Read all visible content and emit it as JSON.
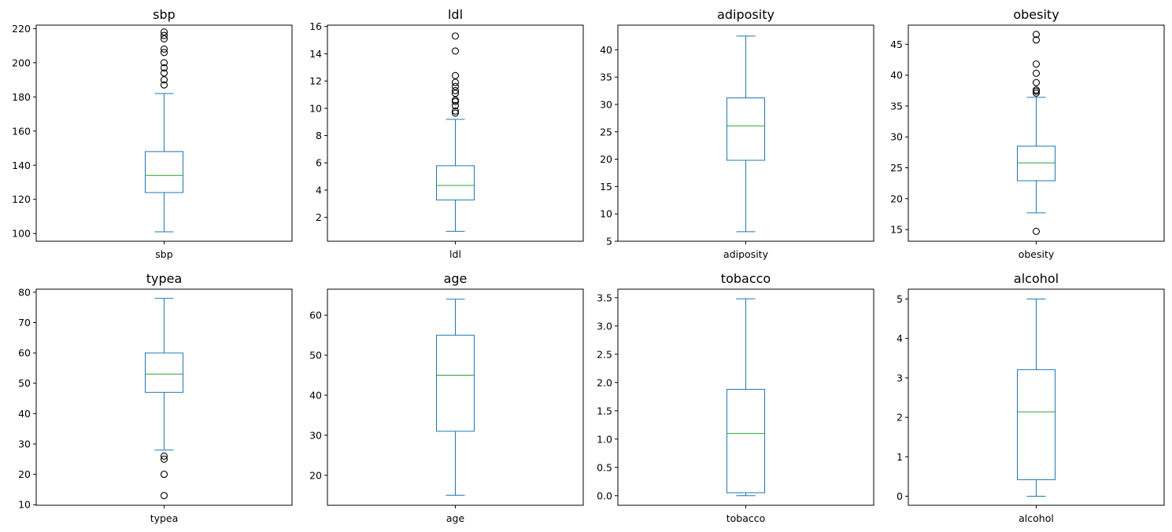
{
  "figure": {
    "background": "#ffffff"
  },
  "colors": {
    "box": "#1f77b4",
    "median": "#2ca02c",
    "flier": "#000000",
    "axes": "#000000"
  },
  "chart_data": [
    {
      "type": "box",
      "title": "sbp",
      "xlabel": "sbp",
      "ylim": [
        95.5,
        222
      ],
      "yticks": [
        100,
        120,
        140,
        160,
        180,
        200,
        220
      ],
      "ytick_labels": [
        "100",
        "120",
        "140",
        "160",
        "180",
        "200",
        "220"
      ],
      "stats": {
        "whislo": 101,
        "q1": 124,
        "median": 134,
        "q3": 148,
        "whishi": 182,
        "fliers": [
          187,
          190,
          194,
          197,
          200,
          206,
          208,
          214,
          216,
          218
        ]
      }
    },
    {
      "type": "box",
      "title": "ldl",
      "xlabel": "ldl",
      "ylim": [
        0.25,
        16.1
      ],
      "yticks": [
        2,
        4,
        6,
        8,
        10,
        12,
        14,
        16
      ],
      "ytick_labels": [
        "2",
        "4",
        "6",
        "8",
        "10",
        "12",
        "14",
        "16"
      ],
      "stats": {
        "whislo": 0.98,
        "q1": 3.28,
        "median": 4.34,
        "q3": 5.79,
        "whishi": 9.19,
        "fliers": [
          9.65,
          9.8,
          10.2,
          10.5,
          10.6,
          11.1,
          11.3,
          11.6,
          11.9,
          12.4,
          14.2,
          15.3
        ]
      }
    },
    {
      "type": "box",
      "title": "adiposity",
      "xlabel": "adiposity",
      "ylim": [
        5,
        44.5
      ],
      "yticks": [
        5,
        10,
        15,
        20,
        25,
        30,
        35,
        40
      ],
      "ytick_labels": [
        "5",
        "10",
        "15",
        "20",
        "25",
        "30",
        "35",
        "40"
      ],
      "stats": {
        "whislo": 6.74,
        "q1": 19.8,
        "median": 26.1,
        "q3": 31.2,
        "whishi": 42.5,
        "fliers": []
      }
    },
    {
      "type": "box",
      "title": "obesity",
      "xlabel": "obesity",
      "ylim": [
        13.1,
        48.1
      ],
      "yticks": [
        15,
        20,
        25,
        30,
        35,
        40,
        45
      ],
      "ytick_labels": [
        "15",
        "20",
        "25",
        "30",
        "35",
        "40",
        "45"
      ],
      "stats": {
        "whislo": 17.7,
        "q1": 22.9,
        "median": 25.8,
        "q3": 28.5,
        "whishi": 36.4,
        "fliers": [
          14.7,
          37.1,
          37.4,
          37.6,
          38.8,
          40.3,
          41.8,
          45.7,
          46.6
        ]
      }
    },
    {
      "type": "box",
      "title": "typea",
      "xlabel": "typea",
      "ylim": [
        9.8,
        81
      ],
      "yticks": [
        10,
        20,
        30,
        40,
        50,
        60,
        70,
        80
      ],
      "ytick_labels": [
        "10",
        "20",
        "30",
        "40",
        "50",
        "60",
        "70",
        "80"
      ],
      "stats": {
        "whislo": 28,
        "q1": 47,
        "median": 53,
        "q3": 60,
        "whishi": 78,
        "fliers": [
          13,
          20,
          25,
          26
        ]
      }
    },
    {
      "type": "box",
      "title": "age",
      "xlabel": "age",
      "ylim": [
        12.5,
        66.5
      ],
      "yticks": [
        20,
        30,
        40,
        50,
        60
      ],
      "ytick_labels": [
        "20",
        "30",
        "40",
        "50",
        "60"
      ],
      "stats": {
        "whislo": 15,
        "q1": 31,
        "median": 45,
        "q3": 55,
        "whishi": 64,
        "fliers": []
      }
    },
    {
      "type": "box",
      "title": "tobacco",
      "xlabel": "tobacco",
      "ylim": [
        -0.17,
        3.65
      ],
      "yticks": [
        0,
        0.5,
        1,
        1.5,
        2,
        2.5,
        3,
        3.5
      ],
      "ytick_labels": [
        "0.0",
        "0.5",
        "1.0",
        "1.5",
        "2.0",
        "2.5",
        "3.0",
        "3.5"
      ],
      "stats": {
        "whislo": 0,
        "q1": 0.052,
        "median": 1.1,
        "q3": 1.88,
        "whishi": 3.48,
        "fliers": []
      }
    },
    {
      "type": "box",
      "title": "alcohol",
      "xlabel": "alcohol",
      "ylim": [
        -0.23,
        5.25
      ],
      "yticks": [
        0,
        1,
        2,
        3,
        4,
        5
      ],
      "ytick_labels": [
        "0",
        "1",
        "2",
        "3",
        "4",
        "5"
      ],
      "stats": {
        "whislo": 0,
        "q1": 0.42,
        "median": 2.14,
        "q3": 3.21,
        "whishi": 5,
        "fliers": []
      }
    }
  ]
}
